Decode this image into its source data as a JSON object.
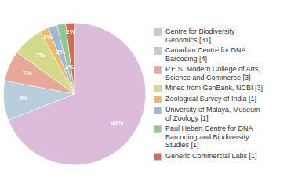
{
  "chart_data": {
    "type": "pie",
    "categories": [
      "Centre for Biodiversity\nGenomics [31]",
      "Canadian Centre for DNA\nBarcoding [4]",
      "P.E.S. Modern College of Arts,\nScience and Commerce [3]",
      "Mined from GenBank, NCBI [3]",
      "Zoological Survey of India [1]",
      "University of Malaya, Museum\nof Zoology [1]",
      "Paul Hebert Centre for DNA\nBarcoding and Biodiversity\nStudies [1]",
      "Generic Commercial Labs [1]"
    ],
    "values": [
      69,
      9,
      7,
      7,
      2,
      2,
      2,
      2
    ],
    "value_labels": [
      "69%",
      "9%",
      "7%",
      "7%",
      "2%",
      "2%",
      "2%",
      "2%"
    ],
    "colors": [
      "#dbbcdb",
      "#b8cedd",
      "#e8a898",
      "#d5d98a",
      "#f0b86a",
      "#a0b8d8",
      "#90c890",
      "#cc7055"
    ],
    "data_labels": true,
    "legend": "right"
  }
}
